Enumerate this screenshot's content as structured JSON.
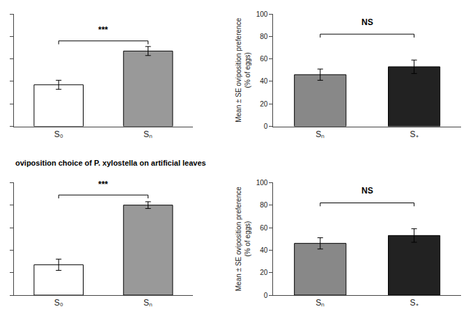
{
  "chart_data": [
    {
      "type": "bar",
      "categories": [
        "S₀",
        "Sₙ"
      ],
      "values": [
        37,
        67
      ],
      "errors": [
        4,
        4
      ],
      "colors": [
        "white",
        "#999999"
      ],
      "annotations": [
        {
          "text": "***",
          "y": 80,
          "line_y": 76
        }
      ],
      "ylim": [
        0,
        100
      ],
      "yticks": [
        0,
        20,
        40,
        60,
        80,
        100
      ],
      "grid": false,
      "tick_labels": "x"
    },
    {
      "type": "bar",
      "categories": [
        "Sₙ",
        "S₊"
      ],
      "values": [
        46,
        53
      ],
      "errors": [
        5,
        6
      ],
      "colors": [
        "#888888",
        "#222222"
      ],
      "annotations": [
        {
          "text": "NS",
          "y": 87,
          "line_y": 82
        }
      ],
      "ylabel": "Mean ± SE oviposition preference\n(% of eggs)",
      "ylim": [
        0,
        100
      ],
      "yticks": [
        0,
        20,
        40,
        60,
        80,
        100
      ],
      "grid": false
    },
    {
      "type": "bar",
      "subtitle": "oviposition choice of P. xylostella on artificial leaves",
      "categories": [
        "S₀",
        "Sₙ"
      ],
      "values": [
        27,
        80
      ],
      "errors": [
        5,
        3
      ],
      "colors": [
        "white",
        "#999999"
      ],
      "annotations": [
        {
          "text": "***",
          "y": 93,
          "line_y": 89
        }
      ],
      "ylim": [
        0,
        100
      ],
      "yticks": [
        0,
        20,
        40,
        60,
        80,
        100
      ],
      "grid": false,
      "tick_labels": "x"
    },
    {
      "type": "bar",
      "categories": [
        "Sₙ",
        "S₊"
      ],
      "values": [
        46,
        53
      ],
      "errors": [
        5,
        6
      ],
      "colors": [
        "#888888",
        "#222222"
      ],
      "annotations": [
        {
          "text": "NS",
          "y": 87,
          "line_y": 82
        }
      ],
      "ylabel": "Mean ± SE oviposition preference\n(% of eggs)",
      "ylim": [
        0,
        100
      ],
      "yticks": [
        0,
        20,
        40,
        60,
        80,
        100
      ],
      "grid": false
    }
  ]
}
